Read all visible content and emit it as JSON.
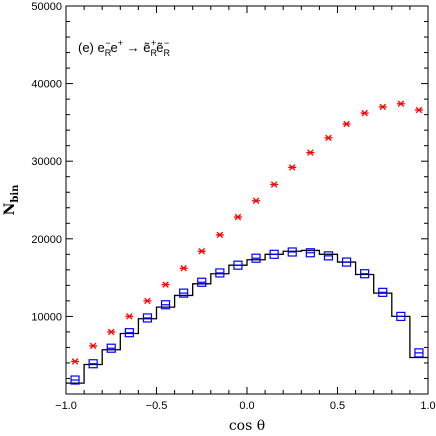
{
  "chart_data": {
    "type": "scatter",
    "annotation": "(e) e",
    "annotation_parts": {
      "prefix": "(e) e",
      "sub1": "R",
      "sup1": "−",
      "mid": "e",
      "sup2": "+",
      "arrow": " → ",
      "tilde_e": "ẽ",
      "sub2": "R",
      "sup3": "+",
      "tilde_e2": "ẽ",
      "sub3": "R",
      "sup4": "−"
    },
    "xlabel": "cos θ",
    "ylabel": "N",
    "ylabel_sub": "bin",
    "xlim": [
      -1.0,
      1.0
    ],
    "ylim": [
      0,
      50000
    ],
    "x_ticks": [
      -1.0,
      -0.5,
      0.0,
      0.5,
      1.0
    ],
    "x_tick_labels": [
      "−1.0",
      "−0.5",
      "0.0",
      "0.5",
      "1.0"
    ],
    "y_ticks": [
      10000,
      20000,
      30000,
      40000,
      50000
    ],
    "y_tick_labels": [
      "10000",
      "20000",
      "30000",
      "40000",
      "50000"
    ],
    "bin_edges": [
      -1.0,
      -0.9,
      -0.8,
      -0.7,
      -0.6,
      -0.5,
      -0.4,
      -0.3,
      -0.2,
      -0.1,
      0.0,
      0.1,
      0.2,
      0.3,
      0.4,
      0.5,
      0.6,
      0.7,
      0.8,
      0.9,
      1.0
    ],
    "series": [
      {
        "marker": "asterisk",
        "color": "#ff0000",
        "x": [
          -0.95,
          -0.85,
          -0.75,
          -0.65,
          -0.55,
          -0.45,
          -0.35,
          -0.25,
          -0.15,
          -0.05,
          0.05,
          0.15,
          0.25,
          0.35,
          0.45,
          0.55,
          0.65,
          0.75,
          0.85,
          0.95
        ],
        "y": [
          4200,
          6200,
          8000,
          10000,
          12000,
          14100,
          16200,
          18400,
          20500,
          22800,
          24900,
          27000,
          29200,
          31100,
          33000,
          34800,
          36200,
          37000,
          37400,
          36600
        ]
      },
      {
        "marker": "open-square",
        "color": "#0000ff",
        "x": [
          -0.95,
          -0.85,
          -0.75,
          -0.65,
          -0.55,
          -0.45,
          -0.35,
          -0.25,
          -0.15,
          -0.05,
          0.05,
          0.15,
          0.25,
          0.35,
          0.45,
          0.55,
          0.65,
          0.75,
          0.85,
          0.95
        ],
        "y": [
          1800,
          3900,
          5900,
          7900,
          9800,
          11500,
          13000,
          14400,
          15600,
          16600,
          17500,
          18000,
          18300,
          18200,
          17800,
          17000,
          15500,
          13100,
          10000,
          5300
        ]
      },
      {
        "type": "histogram",
        "color": "#000000",
        "values": [
          1400,
          3800,
          5700,
          7800,
          9700,
          11200,
          12700,
          14200,
          15500,
          16600,
          17300,
          18000,
          18400,
          18500,
          18000,
          17000,
          15400,
          13000,
          10000,
          4700
        ]
      }
    ]
  }
}
